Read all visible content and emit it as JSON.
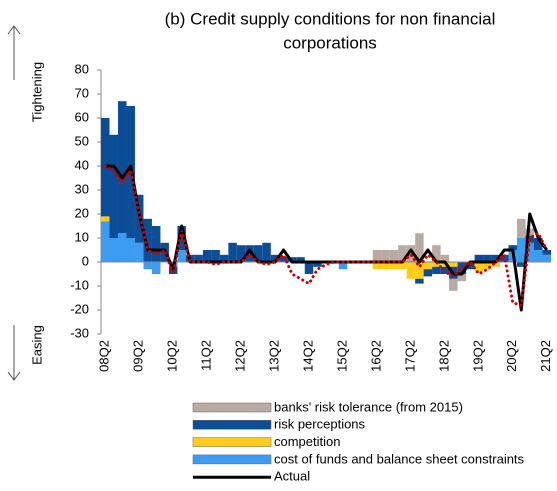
{
  "chart_data": {
    "type": "bar",
    "title": [
      "(b) Credit supply conditions for non financial",
      "corporations"
    ],
    "annotations": [
      "Tightening",
      "Easing"
    ],
    "categories": [
      "08Q2",
      null,
      null,
      null,
      "09Q2",
      null,
      null,
      null,
      "10Q2",
      null,
      null,
      null,
      "11Q2",
      null,
      null,
      null,
      "12Q2",
      null,
      null,
      null,
      "13Q2",
      null,
      null,
      null,
      "14Q2",
      null,
      null,
      null,
      "15Q2",
      null,
      null,
      null,
      "16Q2",
      null,
      null,
      null,
      "17Q2",
      null,
      null,
      null,
      "18Q2",
      null,
      null,
      null,
      "19Q2",
      null,
      null,
      null,
      "20Q2",
      null,
      null,
      null,
      "21Q2"
    ],
    "ylim": [
      -30,
      80
    ],
    "yticks": [
      -30,
      -20,
      -10,
      0,
      10,
      20,
      30,
      40,
      50,
      60,
      70,
      80
    ],
    "series": [
      {
        "name": "banks' risk tolerance (from 2015)",
        "type": "bar",
        "color": "#b9aaa2",
        "values": [
          null,
          null,
          null,
          null,
          null,
          null,
          null,
          null,
          null,
          null,
          null,
          null,
          null,
          null,
          null,
          null,
          null,
          null,
          null,
          null,
          null,
          null,
          null,
          null,
          null,
          null,
          null,
          null,
          null,
          null,
          null,
          null,
          5,
          5,
          5,
          7,
          7,
          12,
          0,
          7,
          3,
          -5,
          -3,
          0,
          0,
          0,
          0,
          0,
          0,
          8,
          3,
          0,
          0
        ]
      },
      {
        "name": "risk perceptions",
        "type": "bar",
        "color": "#0c4d98",
        "values": [
          41,
          43,
          55,
          55,
          20,
          18,
          15,
          8,
          -3,
          10,
          3,
          3,
          5,
          5,
          3,
          8,
          7,
          7,
          7,
          8,
          3,
          2,
          2,
          2,
          -5,
          -2,
          0,
          0,
          0,
          0,
          0,
          0,
          0,
          0,
          0,
          0,
          0,
          -2,
          -3,
          -3,
          -3,
          -5,
          -5,
          -3,
          3,
          3,
          3,
          3,
          2,
          -2,
          3,
          5,
          2
        ]
      },
      {
        "name": "competition",
        "type": "bar",
        "color": "#ffcc1a",
        "values": [
          2,
          0,
          0,
          0,
          0,
          0,
          0,
          0,
          0,
          0,
          0,
          0,
          0,
          0,
          0,
          0,
          0,
          0,
          0,
          0,
          0,
          0,
          0,
          0,
          0,
          0,
          0,
          0,
          0,
          0,
          0,
          0,
          -3,
          -3,
          -3,
          -3,
          -7,
          -7,
          -3,
          -2,
          -2,
          -2,
          0,
          0,
          -4,
          -3,
          -2,
          0,
          0,
          0,
          0,
          0,
          0
        ]
      },
      {
        "name": "cost of funds and balance sheet constraints",
        "type": "bar",
        "color": "#3b9cf2",
        "values": [
          17,
          10,
          12,
          10,
          8,
          -3,
          -5,
          0,
          -2,
          5,
          0,
          0,
          0,
          0,
          0,
          0,
          0,
          0,
          0,
          0,
          0,
          0,
          0,
          0,
          0,
          0,
          0,
          0,
          -3,
          0,
          0,
          0,
          0,
          0,
          0,
          0,
          0,
          0,
          0,
          0,
          0,
          0,
          0,
          0,
          0,
          0,
          0,
          0,
          5,
          10,
          8,
          5,
          3
        ]
      },
      {
        "name": "Actual",
        "type": "line",
        "color": "#000000",
        "values": [
          40,
          40,
          35,
          40,
          20,
          5,
          5,
          5,
          -3,
          15,
          0,
          0,
          0,
          0,
          0,
          0,
          0,
          5,
          0,
          0,
          0,
          5,
          0,
          0,
          0,
          0,
          0,
          0,
          0,
          0,
          0,
          0,
          0,
          0,
          0,
          0,
          5,
          0,
          5,
          0,
          0,
          -5,
          -5,
          0,
          0,
          0,
          0,
          5,
          5,
          -20,
          20,
          10,
          5
        ]
      },
      {
        "type": "dotted",
        "color": "#cc0000",
        "values": [
          40,
          38,
          33,
          38,
          20,
          5,
          3,
          5,
          -5,
          13,
          0,
          0,
          0,
          -1,
          0,
          0,
          0,
          3,
          0,
          -1,
          0,
          3,
          -5,
          -7,
          -9,
          -3,
          -1,
          0,
          0,
          0,
          0,
          0,
          0,
          0,
          0,
          0,
          3,
          -2,
          3,
          0,
          -4,
          -6,
          -2,
          0,
          -5,
          -3,
          0,
          3,
          -17,
          -18,
          10,
          12,
          5
        ]
      }
    ]
  }
}
